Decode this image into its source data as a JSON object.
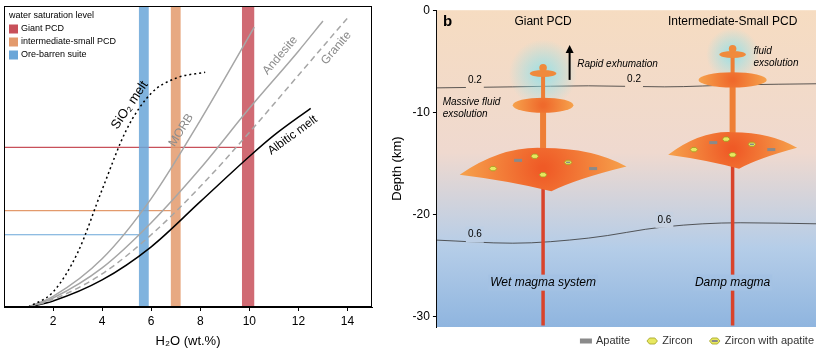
{
  "chart_data": [
    {
      "type": "line",
      "xlabel": "H₂O (wt.%)",
      "xlim": [
        0,
        15
      ],
      "xticks": [
        2,
        4,
        6,
        8,
        10,
        12,
        14
      ],
      "ylim": [
        0,
        10
      ],
      "tick_labels": "x",
      "grid": false,
      "legend": "upper left",
      "legend_title": "water saturation level",
      "series": [
        {
          "name": "SiO₂ melt",
          "color": "#000000",
          "line_style": "dotted",
          "x": [
            1,
            2,
            3,
            4,
            5,
            6,
            7,
            8.2
          ],
          "values": [
            0,
            0.5,
            1.8,
            3.9,
            5.9,
            7.1,
            7.6,
            7.8
          ]
        },
        {
          "name": "MORB",
          "color": "#a6a6a6",
          "line_style": "solid",
          "x": [
            1,
            2,
            4,
            6,
            8,
            9.5,
            10.2
          ],
          "values": [
            0,
            0.35,
            1.6,
            3.6,
            6.2,
            8.3,
            9.3
          ]
        },
        {
          "name": "Andesite",
          "color": "#a6a6a6",
          "line_style": "solid",
          "x": [
            1,
            2,
            4,
            6,
            8,
            10,
            12,
            13
          ],
          "values": [
            0,
            0.3,
            1.3,
            2.8,
            4.6,
            6.6,
            8.5,
            9.5
          ]
        },
        {
          "name": "Granite",
          "color": "#a6a6a6",
          "line_style": "dashed",
          "x": [
            1,
            2,
            4,
            6,
            8,
            10,
            12,
            14
          ],
          "values": [
            0,
            0.25,
            1.1,
            2.4,
            4.0,
            5.8,
            7.7,
            9.6
          ]
        },
        {
          "name": "Albitic melt",
          "color": "#000000",
          "line_style": "solid",
          "x": [
            1,
            2,
            4,
            6,
            8,
            10,
            11,
            12.5
          ],
          "values": [
            0,
            0.2,
            0.9,
            2.0,
            3.5,
            5.0,
            5.7,
            6.6
          ]
        }
      ],
      "bands": [
        {
          "name": "Giant PCD",
          "color": "#c8505a",
          "xrange": [
            9.7,
            10.2
          ],
          "level": 5.3
        },
        {
          "name": "intermediate-small PCD",
          "color": "#e39a6c",
          "xrange": [
            6.8,
            7.2
          ],
          "level": 3.2
        },
        {
          "name": "Ore-barren suite",
          "color": "#6aa6d8",
          "xrange": [
            5.5,
            5.9
          ],
          "level": 2.4
        }
      ]
    },
    {
      "type": "diagram",
      "panel": "b",
      "ylabel": "Depth (km)",
      "ylim": [
        -31,
        0
      ],
      "yticks": [
        0,
        -10,
        -20,
        -30
      ],
      "contours": [
        {
          "label": "0.2",
          "depths": [
            -7.6,
            -7.5,
            -7.4,
            -7.5,
            -7.3,
            -7.2
          ]
        },
        {
          "label": "0.6",
          "depths": [
            -22.5,
            -22.8,
            -22.3,
            -21.2,
            -20.8,
            -20.9
          ]
        }
      ],
      "systems": [
        {
          "title": "Giant PCD",
          "annotations": {
            "exhumation": "Rapid exhumation",
            "fluid": "Massive fluid exsolution"
          },
          "label": "Wet magma system"
        },
        {
          "title": "Intermediate-Small PCD",
          "annotations": {
            "fluid": "fluid exsolution"
          },
          "label": "Damp magma"
        }
      ],
      "legend": "lower right",
      "minerals": [
        "Apatite",
        "Zircon",
        "Zircon with apatite"
      ]
    }
  ]
}
